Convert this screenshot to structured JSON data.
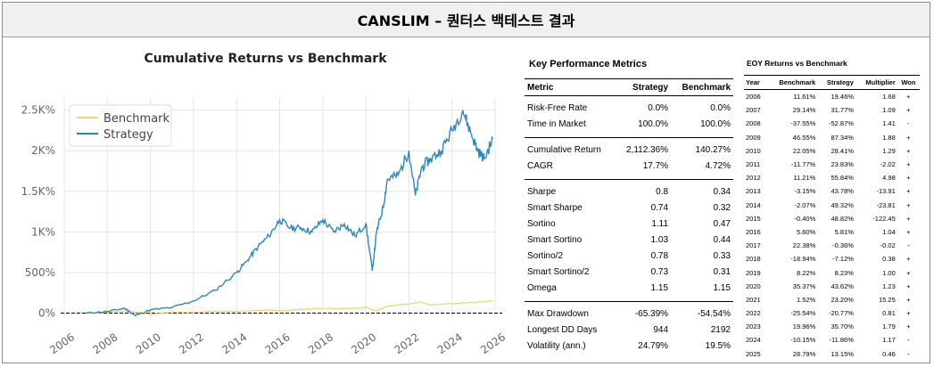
{
  "page_title": "CANSLIM – 퀀터스 백테스트 결과",
  "chart_data": {
    "type": "line",
    "title": "Cumulative Returns vs Benchmark",
    "xlabel": "",
    "ylabel": "",
    "xlim": [
      2006,
      2026
    ],
    "ylim": [
      -60,
      2650
    ],
    "x_ticks": [
      "2006",
      "2008",
      "2010",
      "2012",
      "2014",
      "2016",
      "2018",
      "2020",
      "2022",
      "2024",
      "2026"
    ],
    "y_ticks": [
      {
        "value": 0,
        "label": "0%"
      },
      {
        "value": 500,
        "label": "500%"
      },
      {
        "value": 1000,
        "label": "1K%"
      },
      {
        "value": 1500,
        "label": "1.5K%"
      },
      {
        "value": 2000,
        "label": "2K%"
      },
      {
        "value": 2500,
        "label": "2.5K%"
      }
    ],
    "grid": true,
    "legend_position": "top-left",
    "series": [
      {
        "name": "Benchmark",
        "color": "#f2d47a",
        "x": [
          2007.0,
          2008.0,
          2009.0,
          2010.0,
          2011.0,
          2012.0,
          2013.0,
          2014.0,
          2015.0,
          2016.0,
          2017.0,
          2018.0,
          2019.0,
          2020.0,
          2020.5,
          2021.0,
          2022.0,
          2022.5,
          2023.0,
          2024.0,
          2025.0,
          2025.9
        ],
        "values": [
          0,
          12,
          30,
          -20,
          15,
          10,
          25,
          20,
          35,
          30,
          45,
          60,
          55,
          70,
          30,
          90,
          110,
          140,
          100,
          115,
          130,
          150
        ]
      },
      {
        "name": "Strategy",
        "color": "#2f86bb",
        "x": [
          2007.0,
          2008.0,
          2008.8,
          2009.3,
          2010.0,
          2011.0,
          2012.0,
          2013.0,
          2014.0,
          2014.5,
          2015.0,
          2015.5,
          2016.0,
          2016.5,
          2017.0,
          2017.5,
          2018.0,
          2018.5,
          2019.0,
          2019.5,
          2020.0,
          2020.3,
          2020.5,
          2020.8,
          2021.0,
          2021.5,
          2022.0,
          2022.3,
          2022.6,
          2023.0,
          2023.5,
          2024.0,
          2024.5,
          2024.9,
          2025.2,
          2025.5,
          2025.9
        ],
        "values": [
          0,
          20,
          60,
          -30,
          40,
          70,
          150,
          280,
          500,
          650,
          820,
          950,
          1150,
          1050,
          1050,
          1000,
          1150,
          1000,
          1100,
          950,
          1100,
          520,
          1000,
          1300,
          1650,
          1700,
          2000,
          1450,
          1800,
          1900,
          2000,
          2250,
          2500,
          2200,
          2000,
          1900,
          2150
        ]
      }
    ]
  },
  "key_metrics": {
    "title": "Key Performance Metrics",
    "headers": [
      "Metric",
      "Strategy",
      "Benchmark"
    ],
    "groups": [
      [
        [
          "Risk-Free Rate",
          "0.0%",
          "0.0%"
        ],
        [
          "Time in Market",
          "100.0%",
          "100.0%"
        ]
      ],
      [
        [
          "Cumulative Return",
          "2,112.36%",
          "140.27%"
        ],
        [
          "CAGR",
          "17.7%",
          "4.72%"
        ]
      ],
      [
        [
          "Sharpe",
          "0.8",
          "0.34"
        ],
        [
          "Smart Sharpe",
          "0.74",
          "0.32"
        ],
        [
          "Sortino",
          "1.11",
          "0.47"
        ],
        [
          "Smart Sortino",
          "1.03",
          "0.44"
        ],
        [
          "Sortino/2",
          "0.78",
          "0.33"
        ],
        [
          "Smart Sortino/2",
          "0.73",
          "0.31"
        ],
        [
          "Omega",
          "1.15",
          "1.15"
        ]
      ],
      [
        [
          "Max Drawdown",
          "-65.39%",
          "-54.54%"
        ],
        [
          "Longest DD Days",
          "944",
          "2192"
        ],
        [
          "Volatility (ann.)",
          "24.79%",
          "19.5%"
        ]
      ]
    ]
  },
  "eoy": {
    "title": "EOY Returns vs Benchmark",
    "headers": [
      "Year",
      "Benchmark",
      "Strategy",
      "Multiplier",
      "Won"
    ],
    "rows": [
      [
        "2006",
        "11.61%",
        "19.46%",
        "1.68",
        "+"
      ],
      [
        "2007",
        "29.14%",
        "31.77%",
        "1.09",
        "+"
      ],
      [
        "2008",
        "-37.55%",
        "-52.87%",
        "1.41",
        "-"
      ],
      [
        "2009",
        "46.55%",
        "87.34%",
        "1.88",
        "+"
      ],
      [
        "2010",
        "22.05%",
        "28.41%",
        "1.29",
        "+"
      ],
      [
        "2011",
        "-11.77%",
        "23.83%",
        "-2.02",
        "+"
      ],
      [
        "2012",
        "11.21%",
        "55.84%",
        "4.98",
        "+"
      ],
      [
        "2013",
        "-3.15%",
        "43.78%",
        "-13.91",
        "+"
      ],
      [
        "2014",
        "-2.07%",
        "49.32%",
        "-23.81",
        "+"
      ],
      [
        "2015",
        "-0.40%",
        "48.82%",
        "-122.45",
        "+"
      ],
      [
        "2016",
        "5.60%",
        "5.81%",
        "1.04",
        "+"
      ],
      [
        "2017",
        "22.38%",
        "-0.36%",
        "-0.02",
        "-"
      ],
      [
        "2018",
        "-18.94%",
        "-7.12%",
        "0.38",
        "+"
      ],
      [
        "2019",
        "8.22%",
        "8.23%",
        "1.00",
        "+"
      ],
      [
        "2020",
        "35.37%",
        "43.62%",
        "1.23",
        "+"
      ],
      [
        "2021",
        "1.52%",
        "23.20%",
        "15.25",
        "+"
      ],
      [
        "2022",
        "-25.54%",
        "-20.77%",
        "0.81",
        "+"
      ],
      [
        "2023",
        "19.96%",
        "35.70%",
        "1.79",
        "+"
      ],
      [
        "2024",
        "-10.15%",
        "-11.86%",
        "1.17",
        "-"
      ],
      [
        "2025",
        "28.79%",
        "13.15%",
        "0.46",
        "-"
      ]
    ]
  }
}
